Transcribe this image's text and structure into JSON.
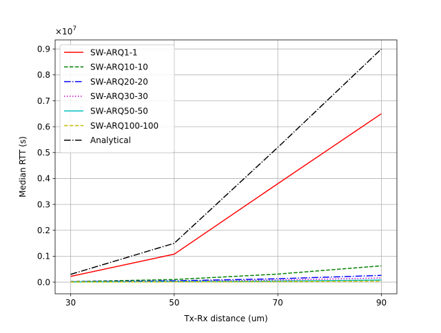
{
  "chart_data": {
    "type": "line",
    "xlabel": "Tx-Rx distance (um)",
    "ylabel": "Median RTT (s)",
    "y_multiplier": "×10",
    "y_multiplier_exp": "7",
    "x": [
      30,
      50,
      70,
      90
    ],
    "x_ticks": [
      30,
      50,
      70,
      90
    ],
    "y_ticks": [
      0.0,
      0.1,
      0.2,
      0.3,
      0.4,
      0.5,
      0.6,
      0.7,
      0.8,
      0.9
    ],
    "xlim": [
      27,
      93
    ],
    "ylim": [
      -0.045,
      0.935
    ],
    "grid": true,
    "legend_position": "upper-left",
    "series": [
      {
        "name": "SW-ARQ1-1",
        "color": "#ff0000",
        "dash": "solid",
        "values": [
          0.022,
          0.108,
          0.38,
          0.65
        ]
      },
      {
        "name": "SW-ARQ10-10",
        "color": "#008000",
        "dash": "dashed",
        "values": [
          0.002,
          0.01,
          0.031,
          0.063
        ]
      },
      {
        "name": "SW-ARQ20-20",
        "color": "#0000ff",
        "dash": "dashdot",
        "values": [
          0.001,
          0.005,
          0.013,
          0.026
        ]
      },
      {
        "name": "SW-ARQ30-30",
        "color": "#bf00bf",
        "dash": "dotted",
        "values": [
          0.001,
          0.003,
          0.008,
          0.016
        ]
      },
      {
        "name": "SW-ARQ50-50",
        "color": "#00bfbf",
        "dash": "solid",
        "values": [
          0.0005,
          0.002,
          0.004,
          0.008
        ]
      },
      {
        "name": "SW-ARQ100-100",
        "color": "#bfbf00",
        "dash": "dashed",
        "values": [
          0.0003,
          0.001,
          0.002,
          0.004
        ]
      },
      {
        "name": "Analytical",
        "color": "#000000",
        "dash": "dashdot",
        "values": [
          0.03,
          0.15,
          0.52,
          0.9
        ]
      }
    ]
  }
}
